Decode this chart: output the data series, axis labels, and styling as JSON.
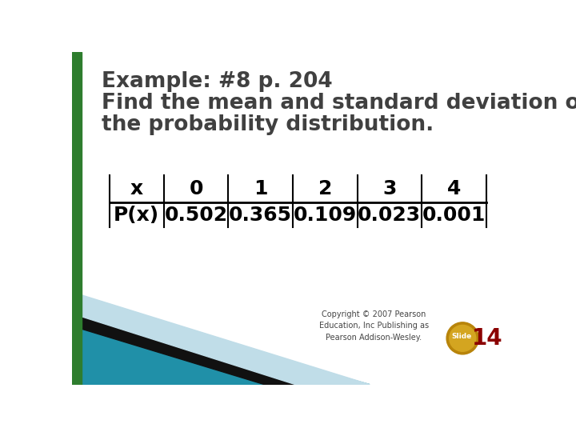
{
  "title_line1": "Example: #8 p. 204",
  "title_line2": "Find the mean and standard deviation of",
  "title_line3": "the probability distribution.",
  "title_color": "#404040",
  "title_fontsize": 19,
  "bg_color": "#ffffff",
  "left_bar_color": "#2e7d2e",
  "table_headers": [
    "x",
    "0",
    "1",
    "2",
    "3",
    "4"
  ],
  "table_row_label": "P(x)",
  "table_row_values": [
    "0.502",
    "0.365",
    "0.109",
    "0.023",
    "0.001"
  ],
  "copyright_text": "Copyright © 2007 Pearson\nEducation, Inc Publishing as\nPearson Addison-Wesley.",
  "copyright_fontsize": 7,
  "slide_label": "Slide",
  "slide_number": "14",
  "slide_label_color": "#ffffff",
  "slide_number_color": "#8b0000",
  "slide_badge_color": "#c8960a",
  "teal_color": "#2090a8",
  "black_color": "#111111",
  "light_blue_color": "#c0dde8"
}
